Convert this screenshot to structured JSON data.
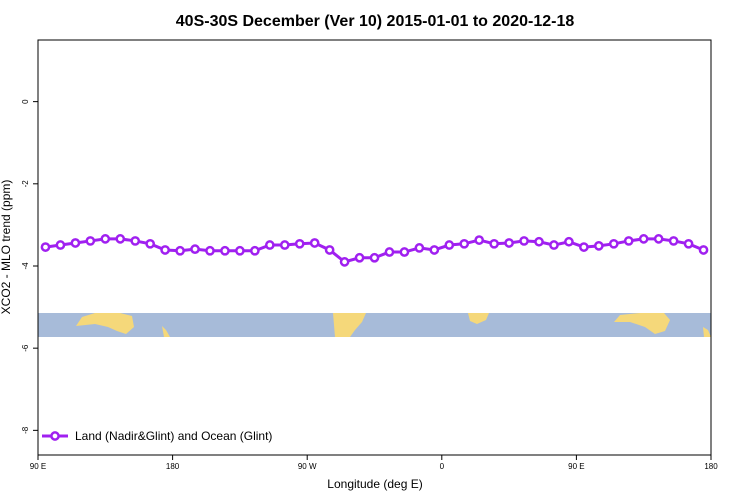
{
  "chart_data": {
    "type": "line",
    "title": "40S-30S December (Ver 10)   2015-01-01 to 2020-12-18",
    "x_label": "Longitude (deg E)",
    "y_label": "XCO2 - MLO trend (ppm)",
    "xlim": [
      90,
      540
    ],
    "ylim": [
      -8.6,
      1.5
    ],
    "xticks": [
      {
        "value": 90,
        "label": "90 E"
      },
      180,
      {
        "value": 270,
        "label": "90 W"
      },
      {
        "value": 360,
        "label": "0"
      },
      {
        "value": 450,
        "label": "90 E"
      },
      {
        "value": 540,
        "label": "180"
      }
    ],
    "yticks": [
      0,
      -2,
      -4,
      -6,
      -8
    ],
    "legend": "bottom-left",
    "x": [
      95,
      105,
      115,
      125,
      135,
      145,
      155,
      165,
      175,
      185,
      195,
      205,
      215,
      225,
      235,
      245,
      255,
      265,
      275,
      285,
      295,
      305,
      315,
      325,
      335,
      345,
      355,
      365,
      375,
      385,
      395,
      405,
      415,
      425,
      435,
      445,
      455,
      465,
      475,
      485,
      495,
      505,
      515,
      525,
      535
    ],
    "series": [
      {
        "name": "Land (Nadir&Glint) and Ocean (Glint)",
        "color": "#a020f0",
        "values": [
          -3.54,
          -3.49,
          -3.44,
          -3.39,
          -3.34,
          -3.34,
          -3.39,
          -3.46,
          -3.61,
          -3.63,
          -3.59,
          -3.63,
          -3.63,
          -3.63,
          -3.63,
          -3.49,
          -3.49,
          -3.46,
          -3.44,
          -3.61,
          -3.9,
          -3.8,
          -3.8,
          -3.66,
          -3.66,
          -3.56,
          -3.61,
          -3.49,
          -3.46,
          -3.37,
          -3.46,
          -3.44,
          -3.39,
          -3.41,
          -3.49,
          -3.41,
          -3.54,
          -3.51,
          -3.46,
          -3.39,
          -3.34,
          -3.34,
          -3.39,
          -3.46,
          -3.61
        ]
      }
    ]
  }
}
